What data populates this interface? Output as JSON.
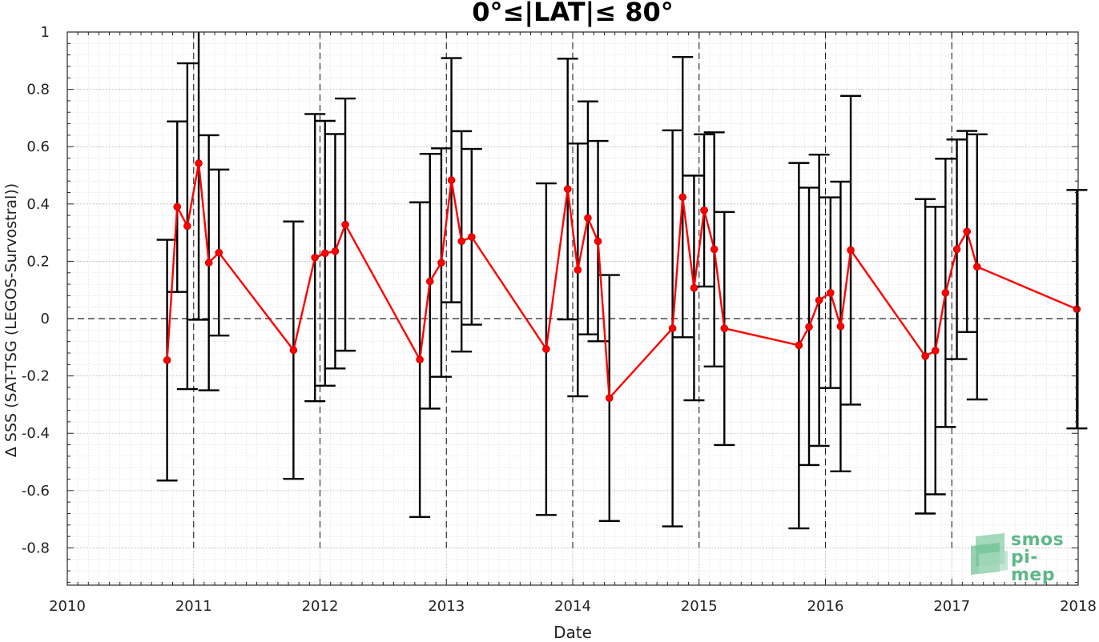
{
  "chart_data": {
    "type": "line",
    "title": "0°≤|LAT|≤ 80°",
    "xlabel": "Date",
    "ylabel": "Δ SSS (SAT-TSG (LEGOS-Survostral))",
    "xlim": [
      2010,
      2018
    ],
    "ylim": [
      -0.93,
      1.0
    ],
    "xticks": [
      "2010",
      "2011",
      "2012",
      "2013",
      "2014",
      "2015",
      "2016",
      "2017",
      "2018"
    ],
    "yticks": [
      "-0.8",
      "-0.6",
      "-0.4",
      "-0.2",
      "0",
      "0.2",
      "0.4",
      "0.6",
      "0.8",
      "1"
    ],
    "grid": true,
    "reference_line_y": 0,
    "year_markers": [
      2011,
      2012,
      2013,
      2014,
      2015,
      2016,
      2017
    ],
    "series": [
      {
        "color": "#ff0000",
        "errorbar_color": "#000000",
        "points": [
          {
            "x": 2010.79,
            "y": -0.145,
            "lo": -0.565,
            "hi": 0.275
          },
          {
            "x": 2010.87,
            "y": 0.39,
            "lo": 0.093,
            "hi": 0.688
          },
          {
            "x": 2010.95,
            "y": 0.323,
            "lo": -0.246,
            "hi": 0.891
          },
          {
            "x": 2011.04,
            "y": 0.542,
            "lo": -0.004,
            "hi": 1.0
          },
          {
            "x": 2011.12,
            "y": 0.195,
            "lo": -0.25,
            "hi": 0.64
          },
          {
            "x": 2011.2,
            "y": 0.23,
            "lo": -0.059,
            "hi": 0.52
          },
          {
            "x": 2011.79,
            "y": -0.11,
            "lo": -0.559,
            "hi": 0.339
          },
          {
            "x": 2011.96,
            "y": 0.213,
            "lo": -0.288,
            "hi": 0.714
          },
          {
            "x": 2012.04,
            "y": 0.228,
            "lo": -0.234,
            "hi": 0.69
          },
          {
            "x": 2012.12,
            "y": 0.235,
            "lo": -0.174,
            "hi": 0.644
          },
          {
            "x": 2012.2,
            "y": 0.328,
            "lo": -0.112,
            "hi": 0.768
          },
          {
            "x": 2012.79,
            "y": -0.143,
            "lo": -0.692,
            "hi": 0.406
          },
          {
            "x": 2012.87,
            "y": 0.13,
            "lo": -0.314,
            "hi": 0.575
          },
          {
            "x": 2012.96,
            "y": 0.195,
            "lo": -0.203,
            "hi": 0.594
          },
          {
            "x": 2013.04,
            "y": 0.483,
            "lo": 0.057,
            "hi": 0.909
          },
          {
            "x": 2013.12,
            "y": 0.27,
            "lo": -0.115,
            "hi": 0.654
          },
          {
            "x": 2013.2,
            "y": 0.285,
            "lo": -0.021,
            "hi": 0.592
          },
          {
            "x": 2013.79,
            "y": -0.106,
            "lo": -0.685,
            "hi": 0.472
          },
          {
            "x": 2013.96,
            "y": 0.452,
            "lo": -0.003,
            "hi": 0.907
          },
          {
            "x": 2014.04,
            "y": 0.17,
            "lo": -0.271,
            "hi": 0.611
          },
          {
            "x": 2014.12,
            "y": 0.351,
            "lo": -0.055,
            "hi": 0.758
          },
          {
            "x": 2014.2,
            "y": 0.27,
            "lo": -0.079,
            "hi": 0.62
          },
          {
            "x": 2014.29,
            "y": -0.277,
            "lo": -0.706,
            "hi": 0.152
          },
          {
            "x": 2014.79,
            "y": -0.034,
            "lo": -0.725,
            "hi": 0.657
          },
          {
            "x": 2014.87,
            "y": 0.424,
            "lo": -0.065,
            "hi": 0.913
          },
          {
            "x": 2014.96,
            "y": 0.107,
            "lo": -0.285,
            "hi": 0.499
          },
          {
            "x": 2015.04,
            "y": 0.378,
            "lo": 0.112,
            "hi": 0.643
          },
          {
            "x": 2015.12,
            "y": 0.242,
            "lo": -0.167,
            "hi": 0.65
          },
          {
            "x": 2015.2,
            "y": -0.034,
            "lo": -0.441,
            "hi": 0.372
          },
          {
            "x": 2015.79,
            "y": -0.093,
            "lo": -0.732,
            "hi": 0.543
          },
          {
            "x": 2015.87,
            "y": -0.029,
            "lo": -0.511,
            "hi": 0.457
          },
          {
            "x": 2015.95,
            "y": 0.064,
            "lo": -0.444,
            "hi": 0.572
          },
          {
            "x": 2016.04,
            "y": 0.09,
            "lo": -0.242,
            "hi": 0.423
          },
          {
            "x": 2016.12,
            "y": -0.027,
            "lo": -0.533,
            "hi": 0.478
          },
          {
            "x": 2016.2,
            "y": 0.239,
            "lo": -0.3,
            "hi": 0.777
          },
          {
            "x": 2016.79,
            "y": -0.131,
            "lo": -0.68,
            "hi": 0.417
          },
          {
            "x": 2016.87,
            "y": -0.112,
            "lo": -0.613,
            "hi": 0.39
          },
          {
            "x": 2016.95,
            "y": 0.09,
            "lo": -0.378,
            "hi": 0.558
          },
          {
            "x": 2017.04,
            "y": 0.242,
            "lo": -0.141,
            "hi": 0.625
          },
          {
            "x": 2017.12,
            "y": 0.304,
            "lo": -0.047,
            "hi": 0.655
          },
          {
            "x": 2017.2,
            "y": 0.181,
            "lo": -0.282,
            "hi": 0.643
          },
          {
            "x": 2017.99,
            "y": 0.033,
            "lo": -0.383,
            "hi": 0.449
          }
        ]
      }
    ]
  },
  "logo": {
    "line1": "smos",
    "line2": "pi-mep",
    "color": "#5fb888"
  }
}
